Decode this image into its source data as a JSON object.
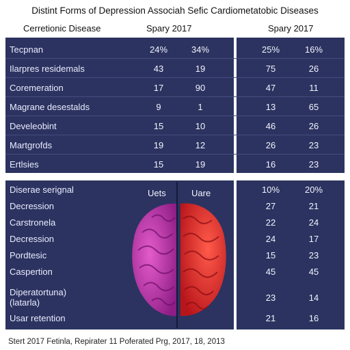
{
  "title": "Distint Forms of Depression Associah Sefic Cardiometatobic Diseases",
  "headers": {
    "disease": "Cerretionic Disease",
    "study1": "Spary 2017",
    "study2": "Spary 2017"
  },
  "top_rows": [
    {
      "label": "Tecpnan",
      "v": [
        "24%",
        "34%",
        "25%",
        "16%"
      ]
    },
    {
      "label": "Ilarpres residemals",
      "v": [
        "43",
        "19",
        "75",
        "26"
      ]
    },
    {
      "label": "Coremeration",
      "v": [
        "17",
        "90",
        "47",
        "11"
      ]
    },
    {
      "label": "Magrane desestalds",
      "v": [
        "9",
        "1",
        "13",
        "65"
      ]
    },
    {
      "label": "Develeobint",
      "v": [
        "15",
        "10",
        "46",
        "26"
      ]
    },
    {
      "label": "Martgrofds",
      "v": [
        "19",
        "12",
        "26",
        "23"
      ]
    },
    {
      "label": "Ertlsies",
      "v": [
        "15",
        "19",
        "16",
        "23"
      ]
    }
  ],
  "brain_headers": [
    "Uets",
    "Uare"
  ],
  "bottom_rows": [
    {
      "label": "Diserae serignal",
      "v": [
        "10%",
        "20%"
      ]
    },
    {
      "label": "Decression",
      "v": [
        "27",
        "21"
      ]
    },
    {
      "label": "Carstronela",
      "v": [
        "22",
        "24"
      ]
    },
    {
      "label": "Decression",
      "v": [
        "24",
        "17"
      ]
    },
    {
      "label": "Pordtesic",
      "v": [
        "15",
        "23"
      ]
    },
    {
      "label": "Caspertion",
      "v": [
        "45",
        "45"
      ]
    },
    {
      "label": "Diperatortuna)",
      "label2": "(latarla)",
      "v": [
        "23",
        "14"
      ]
    },
    {
      "label": "Usar retention",
      "v": [
        "21",
        "16"
      ]
    }
  ],
  "footer": "Stert 2017 Fetinla, Repirater 11 Poferated Prg, 2017, 18, 2013",
  "colors": {
    "panel": "#2c3360",
    "brain_left": "#c23aa8",
    "brain_right": "#e8312f"
  }
}
